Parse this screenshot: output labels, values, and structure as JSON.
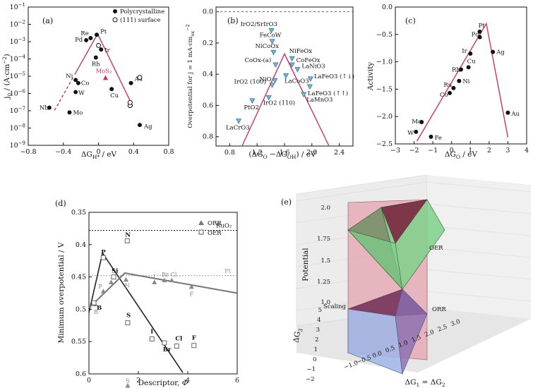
{
  "chart_data": [
    {
      "panel": "(a)",
      "type": "scatter",
      "xlabel": "ΔG_H* / eV",
      "ylabel": "j_0 / (A·cm^-2)",
      "xlim": [
        -0.8,
        0.8
      ],
      "xticks": [
        -0.8,
        -0.4,
        0.0,
        0.4,
        0.8
      ],
      "yscale": "log",
      "ylim": [
        1e-09,
        0.1
      ],
      "yticks": [
        "10^-9",
        "10^-8",
        "10^-7",
        "10^-6",
        "10^-5",
        "10^-4",
        "10^-3",
        "10^-2",
        "10^-1"
      ],
      "legend": {
        "placement": "top-right",
        "entries": [
          "Polycrystalline",
          "(111) surface"
        ]
      },
      "points": [
        {
          "label": "Pt",
          "x": -0.02,
          "y": 0.0025,
          "marker": "filled"
        },
        {
          "label": "Re",
          "x": -0.09,
          "y": 0.0016,
          "marker": "filled"
        },
        {
          "label": "Pd",
          "x": -0.14,
          "y": 0.0012,
          "marker": "filled"
        },
        {
          "label": "Ir",
          "x": 0.03,
          "y": 0.00035,
          "marker": "filled"
        },
        {
          "label": "Rh",
          "x": -0.03,
          "y": 0.00012,
          "marker": "filled"
        },
        {
          "label": "Ni",
          "x": -0.26,
          "y": 6e-06,
          "marker": "filled"
        },
        {
          "label": "Co",
          "x": -0.23,
          "y": 4e-06,
          "marker": "filled"
        },
        {
          "label": "W",
          "x": -0.26,
          "y": 1.2e-06,
          "marker": "filled"
        },
        {
          "label": "Cu",
          "x": 0.15,
          "y": 1.8e-06,
          "marker": "filled"
        },
        {
          "label": "Nb",
          "x": -0.56,
          "y": 1.5e-07,
          "marker": "filled"
        },
        {
          "label": "Mo",
          "x": -0.33,
          "y": 8e-08,
          "marker": "filled"
        },
        {
          "label": "Au",
          "x": 0.37,
          "y": 4e-06,
          "marker": "filled"
        },
        {
          "label": "Ag",
          "x": 0.47,
          "y": 1.5e-08,
          "marker": "filled"
        },
        {
          "label": "MoS2",
          "x": 0.08,
          "y": 8e-06,
          "marker": "triangle"
        },
        {
          "label": "",
          "x": 0.0,
          "y": 0.0006,
          "marker": "open"
        },
        {
          "label": "",
          "x": 0.36,
          "y": 2e-07,
          "marker": "open"
        },
        {
          "label": "",
          "x": 0.36,
          "y": 3e-07,
          "marker": "open"
        },
        {
          "label": "",
          "x": 0.47,
          "y": 8.5e-06,
          "marker": "open"
        }
      ]
    },
    {
      "panel": "(b)",
      "type": "scatter",
      "xlabel": "(ΔG_O − ΔG_OH) / eV",
      "ylabel": "Overpotential for j = 1 mA·cm_ox^-2",
      "xlim": [
        0.6,
        2.6
      ],
      "xticks": [
        0.8,
        1.2,
        1.6,
        2.0,
        2.4
      ],
      "ylim": [
        0.86,
        -0.03
      ],
      "yticks": [
        0.0,
        0.2,
        0.4,
        0.6,
        0.8
      ],
      "points": [
        {
          "label": "IrO2/SrIrO3",
          "x": 1.41,
          "y": 0.12
        },
        {
          "label": "FeCoW",
          "x": 1.42,
          "y": 0.19
        },
        {
          "label": "NiCoOx",
          "x": 1.44,
          "y": 0.26
        },
        {
          "label": "CoOx-(a)",
          "x": 1.47,
          "y": 0.34
        },
        {
          "label": "NiO",
          "x": 1.46,
          "y": 0.44
        },
        {
          "label": "IrO2 (100)",
          "x": 1.42,
          "y": 0.47
        },
        {
          "label": "IrO2 (110)",
          "x": 1.37,
          "y": 0.55
        },
        {
          "label": "PtO2",
          "x": 1.13,
          "y": 0.57
        },
        {
          "label": "LaCrO3",
          "x": 0.93,
          "y": 0.7
        },
        {
          "label": "NiFeOx",
          "x": 1.71,
          "y": 0.3
        },
        {
          "label": "CoFeOx",
          "x": 1.71,
          "y": 0.34
        },
        {
          "label": "LaNiO3",
          "x": 1.79,
          "y": 0.37
        },
        {
          "label": "LaCoO3",
          "x": 1.62,
          "y": 0.41
        },
        {
          "label": "LaFeO3 (↑↓)",
          "x": 1.98,
          "y": 0.43
        },
        {
          "label": "LaFeO3 (↑↑)",
          "x": 1.97,
          "y": 0.48
        },
        {
          "label": "LaMnO3",
          "x": 1.88,
          "y": 0.53
        }
      ]
    },
    {
      "panel": "(c)",
      "type": "scatter",
      "xlabel": "ΔG_O / eV",
      "ylabel": "Activity",
      "xlim": [
        -3,
        4
      ],
      "xticks": [
        -3,
        -2,
        -1,
        0,
        1,
        2,
        3,
        4
      ],
      "ylim": [
        -2.5,
        0.0
      ],
      "yticks": [
        0.0,
        -0.5,
        -1.0,
        -1.5,
        -2.0,
        -2.5
      ],
      "points": [
        {
          "label": "Pt",
          "x": 1.5,
          "y": -0.45
        },
        {
          "label": "Pd",
          "x": 1.5,
          "y": -0.55
        },
        {
          "label": "Ag",
          "x": 2.2,
          "y": -0.82
        },
        {
          "label": "Ir",
          "x": 1.0,
          "y": -0.85
        },
        {
          "label": "Cu",
          "x": 0.9,
          "y": -1.1
        },
        {
          "label": "Rh",
          "x": 0.5,
          "y": -1.14
        },
        {
          "label": "Ni",
          "x": 0.4,
          "y": -1.35
        },
        {
          "label": "Ru",
          "x": 0.1,
          "y": -1.48
        },
        {
          "label": "Co",
          "x": -0.1,
          "y": -1.57
        },
        {
          "label": "Mo",
          "x": -1.6,
          "y": -2.1
        },
        {
          "label": "W",
          "x": -1.9,
          "y": -2.28
        },
        {
          "label": "Fe",
          "x": -1.1,
          "y": -2.37
        },
        {
          "label": "Au",
          "x": 3.0,
          "y": -1.93
        }
      ]
    },
    {
      "panel": "(d)",
      "type": "scatter",
      "xlabel": "Descriptor, Φ",
      "ylabel": "Minimum overpotential / V",
      "xlim": [
        0,
        6
      ],
      "xticks": [
        0,
        2,
        4,
        6
      ],
      "ylim": [
        0.6,
        0.35
      ],
      "yticks": [
        0.35,
        0.4,
        0.45,
        0.5,
        0.55,
        0.6
      ],
      "legend": {
        "placement": "top-right",
        "entries": [
          "ORR",
          "OER"
        ]
      },
      "reference_lines": [
        {
          "label": "RuO2",
          "y": 0.378,
          "style": "dotted"
        },
        {
          "label": "Pt",
          "y": 0.448,
          "style": "dotted"
        }
      ],
      "series": [
        {
          "name": "ORR",
          "points": [
            {
              "label": "B",
              "x": 0.25,
              "y": 0.492
            },
            {
              "label": "P",
              "x": 0.58,
              "y": 0.472
            },
            {
              "label": "N",
              "x": 1.5,
              "y": 0.454
            },
            {
              "label": "I",
              "x": 2.65,
              "y": 0.458
            },
            {
              "label": "Br",
              "x": 3.05,
              "y": 0.455
            },
            {
              "label": "Cl",
              "x": 3.35,
              "y": 0.455
            },
            {
              "label": "F",
              "x": 4.15,
              "y": 0.465
            },
            {
              "label": "S",
              "x": 1.57,
              "y": 0.618
            },
            {
              "label": "Si",
              "x": 0.9,
              "y": 0.458
            }
          ]
        },
        {
          "name": "OER",
          "points": [
            {
              "label": "B",
              "x": 0.2,
              "y": 0.49
            },
            {
              "label": "P",
              "x": 0.58,
              "y": 0.42
            },
            {
              "label": "Si",
              "x": 1.0,
              "y": 0.45
            },
            {
              "label": "N",
              "x": 1.55,
              "y": 0.394
            },
            {
              "label": "S",
              "x": 1.57,
              "y": 0.521
            },
            {
              "label": "I",
              "x": 2.55,
              "y": 0.546
            },
            {
              "label": "Br",
              "x": 3.05,
              "y": 0.552
            },
            {
              "label": "Cl",
              "x": 3.55,
              "y": 0.557
            },
            {
              "label": "F",
              "x": 4.25,
              "y": 0.556
            }
          ]
        }
      ]
    },
    {
      "panel": "(e)",
      "type": "3d-surface",
      "xlabel": "ΔG1 = ΔG2",
      "ylabel": "ΔG3",
      "zlabel": "Potential",
      "xticks": [
        -1.0,
        -0.5,
        0.0,
        0.5,
        1.0,
        1.5,
        2.0,
        2.5,
        3.0
      ],
      "yticks": [
        -2,
        -1,
        0,
        1,
        2,
        3,
        4,
        5
      ],
      "zticks": [
        1.0,
        1.25,
        1.5,
        1.75,
        2.0
      ],
      "annotations": [
        "OER",
        "ORR",
        "Scaling"
      ]
    }
  ],
  "texts": {
    "a": {
      "tag": "(a)",
      "legend1": "Polycrystalline",
      "legend2": "(111) surface",
      "mos2": "MoS₂"
    },
    "b": {
      "tag": "(b)"
    },
    "c": {
      "tag": "(c)"
    },
    "d": {
      "tag": "(d)",
      "legend1": "ORR",
      "legend2": "OER",
      "ruo2": "RuO₂",
      "pt": "Pt"
    },
    "e": {
      "tag": "(e)",
      "oer": "OER",
      "orr": "ORR",
      "scaling": "Scaling",
      "zlabel": "Potential"
    }
  },
  "colors": {
    "volcano": "#c8336b",
    "triangle_fill": "#6bb8d4",
    "mos2": "#c8336b",
    "green": "#7fd18b",
    "pink": "#e6a3ae",
    "maroon": "#7a1c3c",
    "blue": "#9fb6e8",
    "dark_green": "#3f7f3f"
  }
}
